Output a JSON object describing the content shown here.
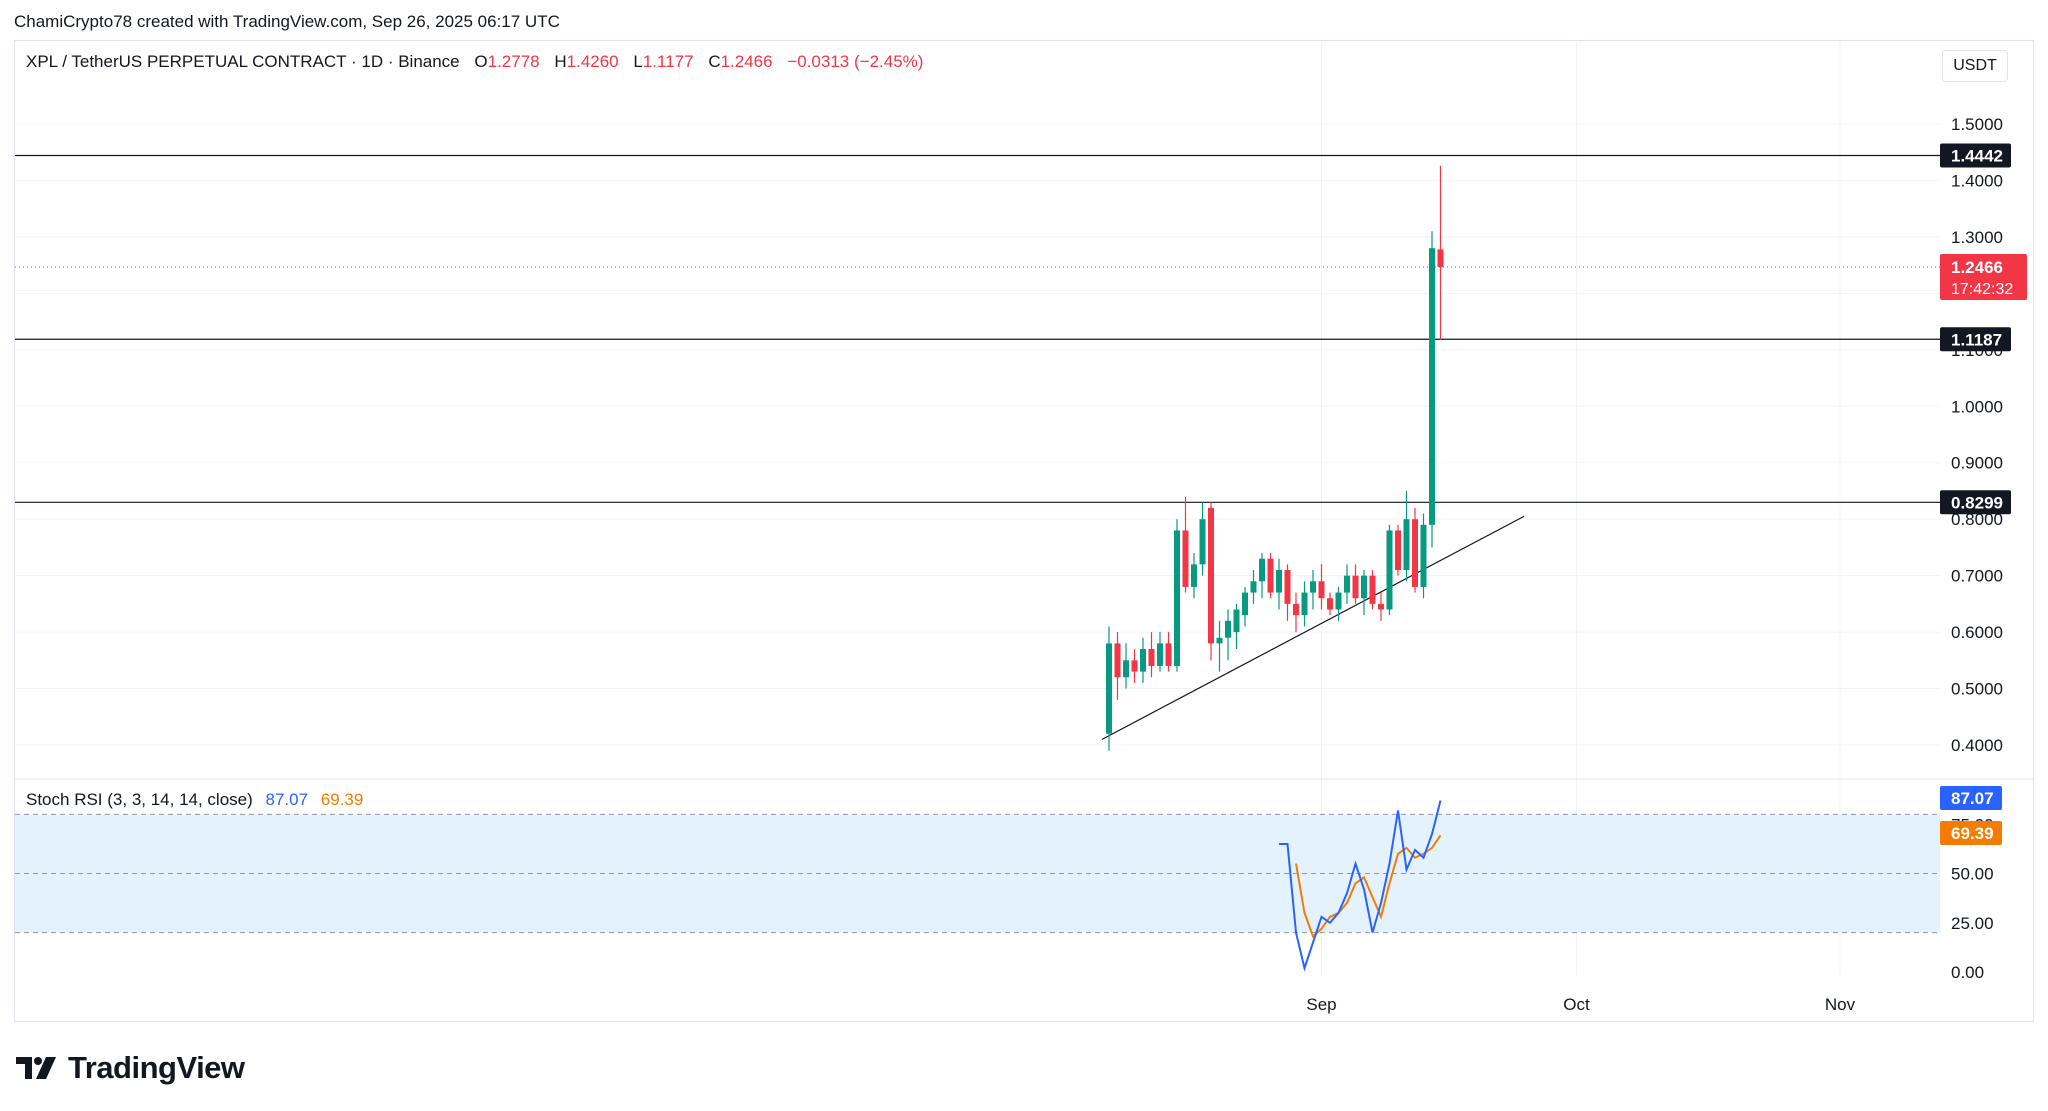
{
  "header": {
    "credit": "ChamiCrypto78 created with TradingView.com, Sep 26, 2025 06:17 UTC"
  },
  "legend": {
    "symbol": "XPL / TetherUS PERPETUAL CONTRACT · 1D · Binance",
    "open_label": "O",
    "open": "1.2778",
    "high_label": "H",
    "high": "1.4260",
    "low_label": "L",
    "low": "1.1177",
    "close_label": "C",
    "close": "1.2466",
    "change": "−0.0313 (−2.45%)"
  },
  "currency_button": "USDT",
  "price_badge": {
    "price": "1.2466",
    "countdown": "17:42:32"
  },
  "horizontal_levels": [
    "1.4442",
    "1.1187",
    "0.8299"
  ],
  "rsi_legend": {
    "title": "Stoch RSI (3, 3, 14, 14, close)",
    "k_value": "87.07",
    "d_value": "69.39"
  },
  "brand": {
    "name": "TradingView"
  },
  "colors": {
    "up": "#089981",
    "down": "#f23645",
    "k_line": "#2962ff",
    "d_line": "#f57c00",
    "rsi_band": "#e3f2fd",
    "grid": "#f0f3fa"
  },
  "chart_data": [
    {
      "type": "candlestick",
      "title": "",
      "ylim": [
        0.37,
        1.56
      ],
      "y_ticks": [
        "0.4000",
        "0.5000",
        "0.6000",
        "0.7000",
        "0.8000",
        "0.9000",
        "1.0000",
        "1.1000",
        "1.2000",
        "1.3000",
        "1.4000",
        "1.5000"
      ],
      "x_ticks": [
        {
          "label": "Sep",
          "date": "2025-09-01"
        },
        {
          "label": "Oct",
          "date": "2025-10-01"
        },
        {
          "label": "Nov",
          "date": "2025-11-01"
        }
      ],
      "candles": [
        {
          "date": "2025-08-07",
          "o": 0.42,
          "h": 0.61,
          "l": 0.39,
          "c": 0.58
        },
        {
          "date": "2025-08-08",
          "o": 0.58,
          "h": 0.6,
          "l": 0.48,
          "c": 0.52
        },
        {
          "date": "2025-08-09",
          "o": 0.52,
          "h": 0.58,
          "l": 0.5,
          "c": 0.55
        },
        {
          "date": "2025-08-10",
          "o": 0.55,
          "h": 0.57,
          "l": 0.51,
          "c": 0.53
        },
        {
          "date": "2025-08-11",
          "o": 0.53,
          "h": 0.59,
          "l": 0.51,
          "c": 0.57
        },
        {
          "date": "2025-08-12",
          "o": 0.57,
          "h": 0.6,
          "l": 0.52,
          "c": 0.54
        },
        {
          "date": "2025-08-13",
          "o": 0.54,
          "h": 0.6,
          "l": 0.53,
          "c": 0.58
        },
        {
          "date": "2025-08-14",
          "o": 0.58,
          "h": 0.6,
          "l": 0.53,
          "c": 0.54
        },
        {
          "date": "2025-08-15",
          "o": 0.54,
          "h": 0.8,
          "l": 0.53,
          "c": 0.78
        },
        {
          "date": "2025-08-16",
          "o": 0.78,
          "h": 0.84,
          "l": 0.67,
          "c": 0.68
        },
        {
          "date": "2025-08-17",
          "o": 0.68,
          "h": 0.74,
          "l": 0.66,
          "c": 0.72
        },
        {
          "date": "2025-08-18",
          "o": 0.72,
          "h": 0.83,
          "l": 0.7,
          "c": 0.8
        },
        {
          "date": "2025-08-19",
          "o": 0.82,
          "h": 0.83,
          "l": 0.55,
          "c": 0.58
        },
        {
          "date": "2025-08-20",
          "o": 0.58,
          "h": 0.62,
          "l": 0.53,
          "c": 0.59
        },
        {
          "date": "2025-08-21",
          "o": 0.59,
          "h": 0.64,
          "l": 0.55,
          "c": 0.62
        },
        {
          "date": "2025-08-22",
          "o": 0.6,
          "h": 0.65,
          "l": 0.57,
          "c": 0.64
        },
        {
          "date": "2025-08-23",
          "o": 0.63,
          "h": 0.68,
          "l": 0.61,
          "c": 0.67
        },
        {
          "date": "2025-08-24",
          "o": 0.67,
          "h": 0.71,
          "l": 0.65,
          "c": 0.69
        },
        {
          "date": "2025-08-25",
          "o": 0.69,
          "h": 0.74,
          "l": 0.66,
          "c": 0.73
        },
        {
          "date": "2025-08-26",
          "o": 0.73,
          "h": 0.74,
          "l": 0.66,
          "c": 0.67
        },
        {
          "date": "2025-08-27",
          "o": 0.67,
          "h": 0.73,
          "l": 0.64,
          "c": 0.71
        },
        {
          "date": "2025-08-28",
          "o": 0.71,
          "h": 0.72,
          "l": 0.62,
          "c": 0.65
        },
        {
          "date": "2025-08-29",
          "o": 0.65,
          "h": 0.67,
          "l": 0.6,
          "c": 0.63
        },
        {
          "date": "2025-08-30",
          "o": 0.63,
          "h": 0.69,
          "l": 0.61,
          "c": 0.67
        },
        {
          "date": "2025-08-31",
          "o": 0.67,
          "h": 0.71,
          "l": 0.64,
          "c": 0.69
        },
        {
          "date": "2025-09-01",
          "o": 0.69,
          "h": 0.72,
          "l": 0.64,
          "c": 0.66
        },
        {
          "date": "2025-09-02",
          "o": 0.66,
          "h": 0.67,
          "l": 0.63,
          "c": 0.64
        },
        {
          "date": "2025-09-03",
          "o": 0.64,
          "h": 0.68,
          "l": 0.62,
          "c": 0.67
        },
        {
          "date": "2025-09-04",
          "o": 0.67,
          "h": 0.72,
          "l": 0.65,
          "c": 0.7
        },
        {
          "date": "2025-09-05",
          "o": 0.7,
          "h": 0.72,
          "l": 0.65,
          "c": 0.66
        },
        {
          "date": "2025-09-06",
          "o": 0.66,
          "h": 0.71,
          "l": 0.63,
          "c": 0.7
        },
        {
          "date": "2025-09-07",
          "o": 0.7,
          "h": 0.71,
          "l": 0.64,
          "c": 0.65
        },
        {
          "date": "2025-09-08",
          "o": 0.65,
          "h": 0.67,
          "l": 0.62,
          "c": 0.64
        },
        {
          "date": "2025-09-09",
          "o": 0.64,
          "h": 0.79,
          "l": 0.63,
          "c": 0.78
        },
        {
          "date": "2025-09-10",
          "o": 0.78,
          "h": 0.79,
          "l": 0.7,
          "c": 0.71
        },
        {
          "date": "2025-09-11",
          "o": 0.71,
          "h": 0.85,
          "l": 0.69,
          "c": 0.8
        },
        {
          "date": "2025-09-12",
          "o": 0.8,
          "h": 0.82,
          "l": 0.67,
          "c": 0.68
        },
        {
          "date": "2025-09-13",
          "o": 0.68,
          "h": 0.81,
          "l": 0.66,
          "c": 0.79
        },
        {
          "date": "2025-09-14",
          "o": 0.79,
          "h": 1.31,
          "l": 0.75,
          "c": 1.28
        },
        {
          "date": "2025-09-15",
          "o": 1.2778,
          "h": 1.426,
          "l": 1.1177,
          "c": 1.2466
        }
      ]
    },
    {
      "type": "line",
      "title": "Stoch RSI (3, 3, 14, 14, close)",
      "ylim": [
        0,
        100
      ],
      "y_ticks": [
        "0.00",
        "25.00",
        "50.00",
        "75.00"
      ],
      "band": [
        20,
        80
      ],
      "series": [
        {
          "name": "K",
          "values": [
            null,
            null,
            null,
            null,
            null,
            null,
            null,
            null,
            null,
            null,
            null,
            null,
            null,
            null,
            null,
            null,
            null,
            null,
            null,
            null,
            65,
            65,
            20,
            2,
            15,
            28,
            25,
            30,
            40,
            55,
            42,
            20,
            35,
            55,
            82,
            52,
            62,
            58,
            70,
            87.07
          ]
        },
        {
          "name": "D",
          "values": [
            null,
            null,
            null,
            null,
            null,
            null,
            null,
            null,
            null,
            null,
            null,
            null,
            null,
            null,
            null,
            null,
            null,
            null,
            null,
            null,
            null,
            null,
            55,
            30,
            18,
            22,
            28,
            30,
            35,
            45,
            48,
            38,
            28,
            45,
            60,
            63,
            58,
            60,
            63,
            69.39
          ]
        }
      ]
    }
  ]
}
